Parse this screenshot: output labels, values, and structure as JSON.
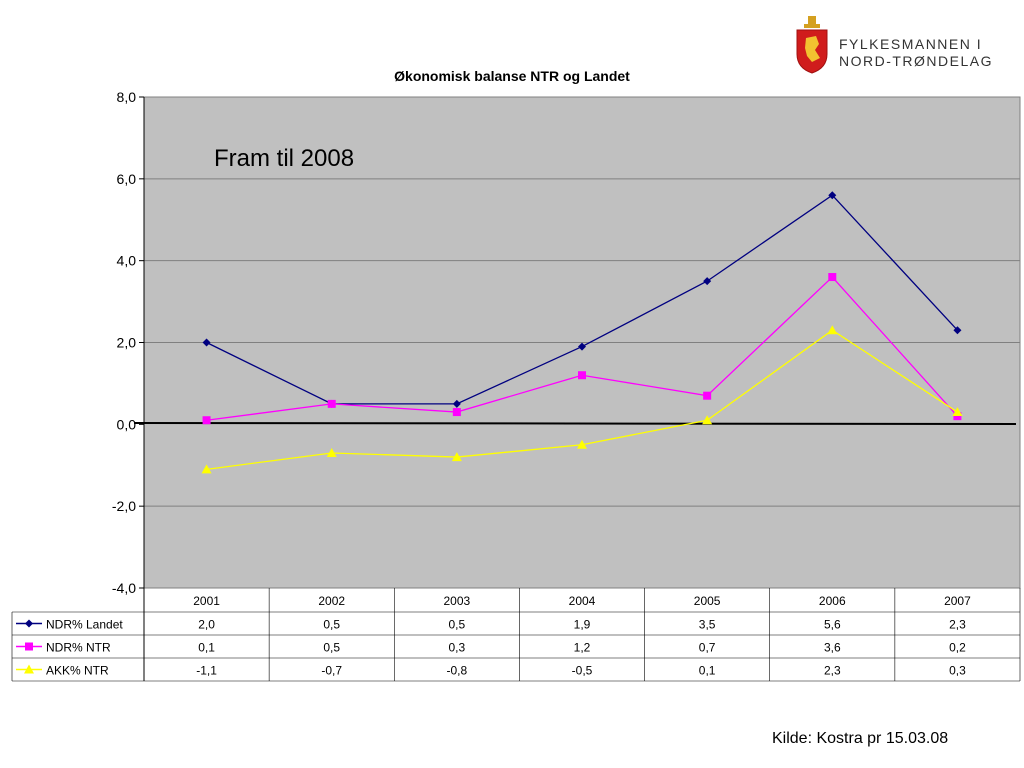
{
  "logo": {
    "line1": "FYLKESMANNEN I",
    "line2": "NORD-TRØNDELAG",
    "emblem_icon": "coat-of-arms-lion-icon"
  },
  "source_note": "Kilde: Kostra pr 15.03.08",
  "colors": {
    "plot_bg": "#c0c0c0",
    "gridline": "#808080",
    "zero_line": "#000000"
  },
  "chart_data": {
    "type": "line",
    "title": "Økonomisk balanse NTR og Landet",
    "annotation": "Fram til 2008",
    "categories": [
      "2001",
      "2002",
      "2003",
      "2004",
      "2005",
      "2006",
      "2007"
    ],
    "ylim": [
      -4,
      8
    ],
    "yticks": [
      "8,0",
      "6,0",
      "4,0",
      "2,0",
      "0,0",
      "-2,0",
      "-4,0"
    ],
    "ytick_values": [
      8,
      6,
      4,
      2,
      0,
      -2,
      -4
    ],
    "grid": true,
    "legend": "data-table-below",
    "series": [
      {
        "name": "NDR% Landet",
        "color": "#000080",
        "marker": "diamond",
        "values": [
          2.0,
          0.5,
          0.5,
          1.9,
          3.5,
          5.6,
          2.3
        ],
        "labels": [
          "2,0",
          "0,5",
          "0,5",
          "1,9",
          "3,5",
          "5,6",
          "2,3"
        ]
      },
      {
        "name": "NDR% NTR",
        "color": "#ff00ff",
        "marker": "square",
        "values": [
          0.1,
          0.5,
          0.3,
          1.2,
          0.7,
          3.6,
          0.2
        ],
        "labels": [
          "0,1",
          "0,5",
          "0,3",
          "1,2",
          "0,7",
          "3,6",
          "0,2"
        ]
      },
      {
        "name": "AKK% NTR",
        "color": "#ffff00",
        "marker": "triangle",
        "values": [
          -1.1,
          -0.7,
          -0.8,
          -0.5,
          0.1,
          2.3,
          0.3
        ],
        "labels": [
          "-1,1",
          "-0,7",
          "-0,8",
          "-0,5",
          "0,1",
          "2,3",
          "0,3"
        ]
      }
    ]
  }
}
